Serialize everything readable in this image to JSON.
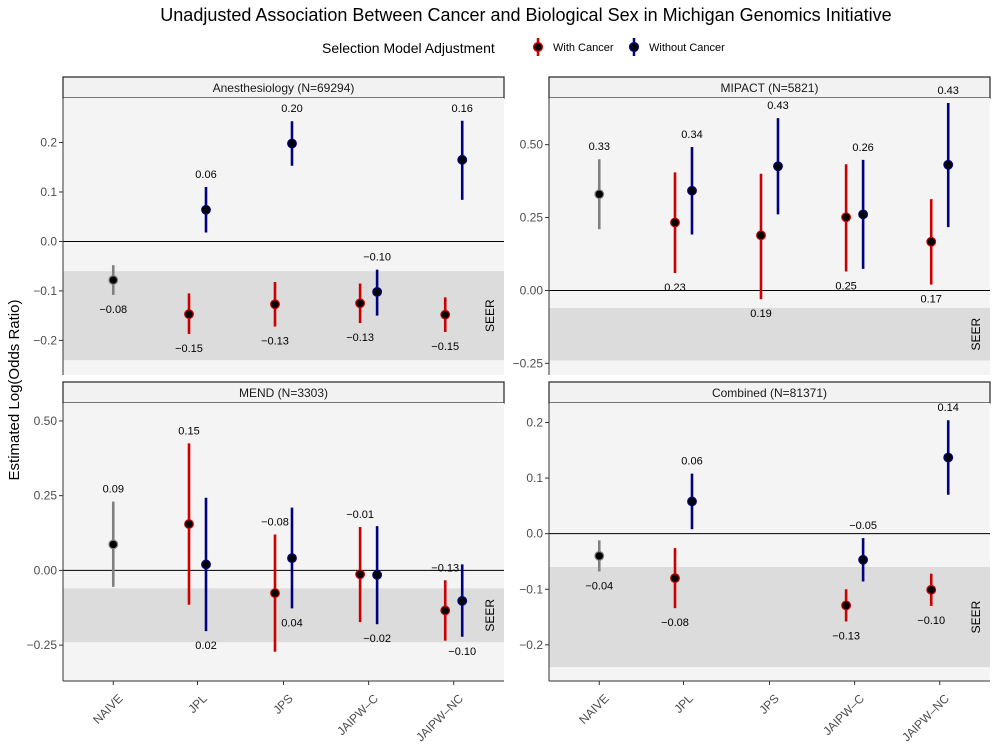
{
  "chart_data": {
    "type": "errorbar-faceted",
    "title": "Unadjusted Association Between Cancer and Biological Sex in Michigan Genomics Initiative",
    "ylabel": "Estimated Log(Odds Ratio)",
    "legend": {
      "title": "Selection Model Adjustment",
      "placement": "top",
      "entries": [
        {
          "name": "With Cancer",
          "color": "#cc0000"
        },
        {
          "name": "Without Cancer",
          "color": "#000080"
        }
      ]
    },
    "naive_color": "#808080",
    "point_color": "#000000",
    "seer_label": "SEER",
    "seer_band": [
      -0.24,
      -0.06
    ],
    "categories": [
      "NAIVE",
      "JPL",
      "JPS",
      "JAIPW–C",
      "JAIPW–NC"
    ],
    "panels": [
      {
        "label": "Anesthesiology (N=69294)",
        "ylim": [
          -0.27,
          0.29
        ],
        "ticks": [
          -0.2,
          -0.1,
          0.0,
          0.1,
          0.2
        ],
        "tick_labels": [
          "−0.2",
          "−0.1",
          "0.0",
          "0.1",
          "0.2"
        ],
        "points": [
          {
            "cat": 0,
            "group": "naive",
            "est": -0.078,
            "lo": -0.108,
            "hi": -0.048,
            "label": "−0.08",
            "label_pos": "below"
          },
          {
            "cat": 1,
            "group": "with",
            "est": -0.147,
            "lo": -0.187,
            "hi": -0.105,
            "label": "−0.15",
            "label_pos": "below"
          },
          {
            "cat": 1,
            "group": "without",
            "est": 0.064,
            "lo": 0.018,
            "hi": 0.11,
            "label": "0.06",
            "label_pos": "above"
          },
          {
            "cat": 2,
            "group": "with",
            "est": -0.127,
            "lo": -0.172,
            "hi": -0.082,
            "label": "−0.13",
            "label_pos": "below"
          },
          {
            "cat": 2,
            "group": "without",
            "est": 0.198,
            "lo": 0.153,
            "hi": 0.243,
            "label": "0.20",
            "label_pos": "above"
          },
          {
            "cat": 3,
            "group": "with",
            "est": -0.125,
            "lo": -0.165,
            "hi": -0.085,
            "label": "−0.13",
            "label_pos": "below"
          },
          {
            "cat": 3,
            "group": "without",
            "est": -0.102,
            "lo": -0.15,
            "hi": -0.057,
            "label": "−0.10",
            "label_pos": "above"
          },
          {
            "cat": 4,
            "group": "with",
            "est": -0.148,
            "lo": -0.183,
            "hi": -0.113,
            "label": "−0.15",
            "label_pos": "below"
          },
          {
            "cat": 4,
            "group": "without",
            "est": 0.165,
            "lo": 0.084,
            "hi": 0.244,
            "label": "0.16",
            "label_pos": "above"
          }
        ]
      },
      {
        "label": "MIPACT (N=5821)",
        "ylim": [
          -0.29,
          0.66
        ],
        "ticks": [
          -0.25,
          0.0,
          0.25,
          0.5
        ],
        "tick_labels": [
          "−0.25",
          "0.00",
          "0.25",
          "0.50"
        ],
        "points": [
          {
            "cat": 0,
            "group": "naive",
            "est": 0.33,
            "lo": 0.21,
            "hi": 0.45,
            "label": "0.33",
            "label_pos": "above"
          },
          {
            "cat": 1,
            "group": "with",
            "est": 0.233,
            "lo": 0.06,
            "hi": 0.405,
            "label": "0.23",
            "label_pos": "below"
          },
          {
            "cat": 1,
            "group": "without",
            "est": 0.342,
            "lo": 0.192,
            "hi": 0.492,
            "label": "0.34",
            "label_pos": "above"
          },
          {
            "cat": 2,
            "group": "with",
            "est": 0.189,
            "lo": -0.03,
            "hi": 0.4,
            "label": "0.19",
            "label_pos": "below"
          },
          {
            "cat": 2,
            "group": "without",
            "est": 0.426,
            "lo": 0.261,
            "hi": 0.591,
            "label": "0.43",
            "label_pos": "above"
          },
          {
            "cat": 3,
            "group": "with",
            "est": 0.251,
            "lo": 0.065,
            "hi": 0.433,
            "label": "0.25",
            "label_pos": "below"
          },
          {
            "cat": 3,
            "group": "without",
            "est": 0.261,
            "lo": 0.074,
            "hi": 0.448,
            "label": "0.26",
            "label_pos": "above"
          },
          {
            "cat": 4,
            "group": "with",
            "est": 0.167,
            "lo": 0.02,
            "hi": 0.313,
            "label": "0.17",
            "label_pos": "below"
          },
          {
            "cat": 4,
            "group": "without",
            "est": 0.431,
            "lo": 0.217,
            "hi": 0.643,
            "label": "0.43",
            "label_pos": "above"
          }
        ]
      },
      {
        "label": "MEND (N=3303)",
        "ylim": [
          -0.37,
          0.56
        ],
        "ticks": [
          -0.25,
          0.0,
          0.25,
          0.5
        ],
        "tick_labels": [
          "−0.25",
          "0.00",
          "0.25",
          "0.50"
        ],
        "points": [
          {
            "cat": 0,
            "group": "naive",
            "est": 0.087,
            "lo": -0.055,
            "hi": 0.23,
            "label": "0.09",
            "label_pos": "above"
          },
          {
            "cat": 1,
            "group": "with",
            "est": 0.155,
            "lo": -0.115,
            "hi": 0.425,
            "label": "0.15",
            "label_pos": "above"
          },
          {
            "cat": 1,
            "group": "without",
            "est": 0.02,
            "lo": -0.203,
            "hi": 0.243,
            "label": "0.02",
            "label_pos": "below"
          },
          {
            "cat": 2,
            "group": "with",
            "est": -0.076,
            "lo": -0.272,
            "hi": 0.12,
            "label": "−0.08",
            "label_pos": "above"
          },
          {
            "cat": 2,
            "group": "without",
            "est": 0.041,
            "lo": -0.127,
            "hi": 0.21,
            "label": "0.04",
            "label_pos": "below"
          },
          {
            "cat": 3,
            "group": "with",
            "est": -0.013,
            "lo": -0.173,
            "hi": 0.145,
            "label": "−0.01",
            "label_pos": "above"
          },
          {
            "cat": 3,
            "group": "without",
            "est": -0.015,
            "lo": -0.18,
            "hi": 0.148,
            "label": "−0.02",
            "label_pos": "below"
          },
          {
            "cat": 4,
            "group": "with",
            "est": -0.134,
            "lo": -0.235,
            "hi": -0.033,
            "label": "−0.13",
            "label_pos": "above"
          },
          {
            "cat": 4,
            "group": "without",
            "est": -0.102,
            "lo": -0.222,
            "hi": 0.02,
            "label": "−0.10",
            "label_pos": "below"
          }
        ]
      },
      {
        "label": "Combined (N=81371)",
        "ylim": [
          -0.265,
          0.235
        ],
        "ticks": [
          -0.2,
          -0.1,
          0.0,
          0.1,
          0.2
        ],
        "tick_labels": [
          "−0.2",
          "−0.1",
          "0.0",
          "0.1",
          "0.2"
        ],
        "points": [
          {
            "cat": 0,
            "group": "naive",
            "est": -0.04,
            "lo": -0.068,
            "hi": -0.012,
            "label": "−0.04",
            "label_pos": "below"
          },
          {
            "cat": 1,
            "group": "with",
            "est": -0.08,
            "lo": -0.134,
            "hi": -0.026,
            "label": "−0.08",
            "label_pos": "below"
          },
          {
            "cat": 1,
            "group": "without",
            "est": 0.058,
            "lo": 0.008,
            "hi": 0.108,
            "label": "0.06",
            "label_pos": "above"
          },
          {
            "cat": 3,
            "group": "with",
            "est": -0.129,
            "lo": -0.158,
            "hi": -0.1,
            "label": "−0.13",
            "label_pos": "below"
          },
          {
            "cat": 3,
            "group": "without",
            "est": -0.047,
            "lo": -0.086,
            "hi": -0.008,
            "label": "−0.05",
            "label_pos": "above"
          },
          {
            "cat": 4,
            "group": "with",
            "est": -0.101,
            "lo": -0.13,
            "hi": -0.072,
            "label": "−0.10",
            "label_pos": "below"
          },
          {
            "cat": 4,
            "group": "without",
            "est": 0.137,
            "lo": 0.07,
            "hi": 0.204,
            "label": "0.14",
            "label_pos": "above"
          }
        ]
      }
    ]
  }
}
